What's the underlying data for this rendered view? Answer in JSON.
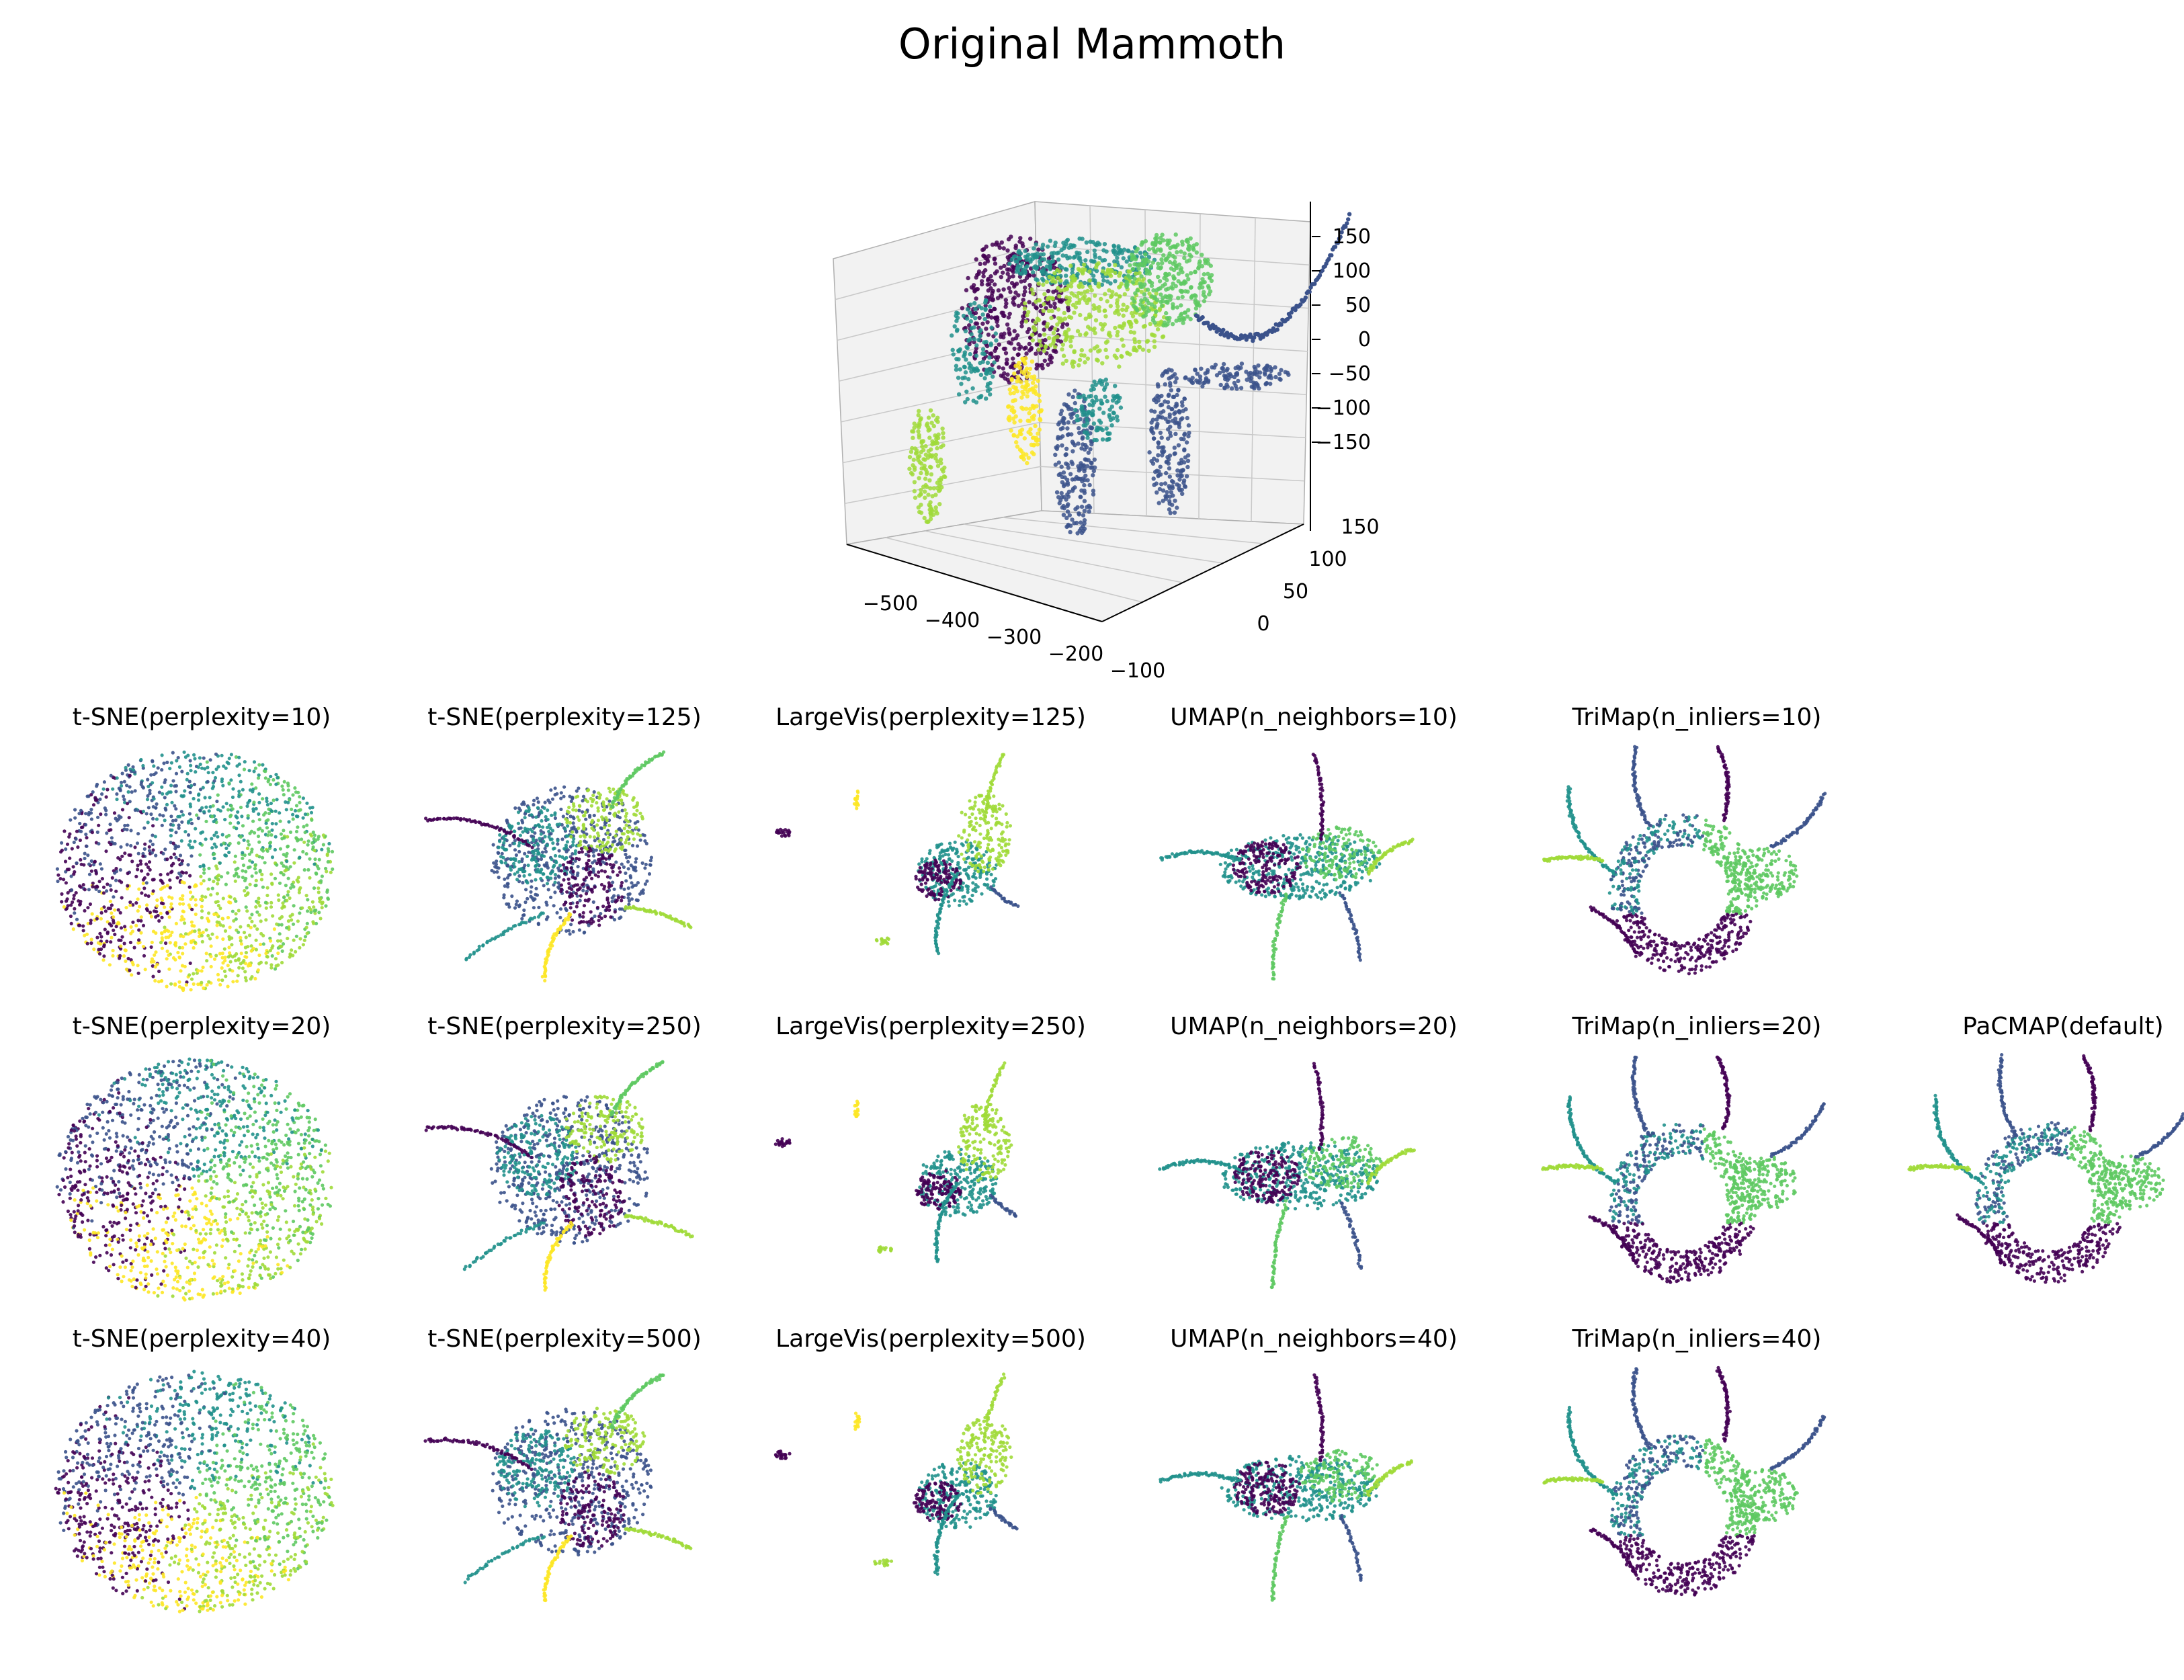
{
  "title": "Original Mammoth",
  "colors": {
    "viridis": [
      "#440154",
      "#3b528b",
      "#21918c",
      "#5ec962",
      "#a0da39",
      "#fde725"
    ],
    "pane": "#f2f2f2",
    "grid": "#c8c8c8"
  },
  "original_3d": {
    "type": "scatter3d",
    "z_ticks": [
      "150",
      "100",
      "50",
      "0",
      "−50",
      "−100",
      "−150"
    ],
    "x_ticks": [
      "−500",
      "−400",
      "−300",
      "−200",
      "−100"
    ],
    "y_ticks": [
      "0",
      "50",
      "100",
      "150"
    ],
    "xlim": [
      -560,
      -60
    ],
    "ylim": [
      -20,
      190
    ],
    "zlim": [
      -180,
      180
    ]
  },
  "panels": [
    {
      "title": "t-SNE(perplexity=10)",
      "method": "tsne",
      "param": 10
    },
    {
      "title": "t-SNE(perplexity=125)",
      "method": "tsne",
      "param": 125
    },
    {
      "title": "LargeVis(perplexity=125)",
      "method": "largevis",
      "param": 125
    },
    {
      "title": "UMAP(n_neighbors=10)",
      "method": "umap",
      "param": 10
    },
    {
      "title": "TriMap(n_inliers=10)",
      "method": "trimap",
      "param": 10
    },
    {
      "title": "t-SNE(perplexity=20)",
      "method": "tsne",
      "param": 20
    },
    {
      "title": "t-SNE(perplexity=250)",
      "method": "tsne",
      "param": 250
    },
    {
      "title": "LargeVis(perplexity=250)",
      "method": "largevis",
      "param": 250
    },
    {
      "title": "UMAP(n_neighbors=20)",
      "method": "umap",
      "param": 20
    },
    {
      "title": "TriMap(n_inliers=20)",
      "method": "trimap",
      "param": 20
    },
    {
      "title": "PaCMAP(default)",
      "method": "pacmap",
      "param": 0
    },
    {
      "title": "t-SNE(perplexity=40)",
      "method": "tsne",
      "param": 40
    },
    {
      "title": "t-SNE(perplexity=500)",
      "method": "tsne",
      "param": 500
    },
    {
      "title": "LargeVis(perplexity=500)",
      "method": "largevis",
      "param": 500
    },
    {
      "title": "UMAP(n_neighbors=40)",
      "method": "umap",
      "param": 40
    },
    {
      "title": "TriMap(n_inliers=40)",
      "method": "trimap",
      "param": 40
    }
  ],
  "chart_data": {
    "type": "scatter",
    "title": "Original Mammoth",
    "x_ticks_3d": [
      "−500",
      "−400",
      "−300",
      "−200",
      "−100"
    ],
    "y_ticks_3d": [
      "0",
      "50",
      "100",
      "150"
    ],
    "z_ticks_3d": [
      "150",
      "100",
      "50",
      "0",
      "−50",
      "−100",
      "−150"
    ],
    "colormap": "viridis",
    "panel_titles": [
      "t-SNE(perplexity=10)",
      "t-SNE(perplexity=125)",
      "LargeVis(perplexity=125)",
      "UMAP(n_neighbors=10)",
      "TriMap(n_inliers=10)",
      "t-SNE(perplexity=20)",
      "t-SNE(perplexity=250)",
      "LargeVis(perplexity=250)",
      "UMAP(n_neighbors=20)",
      "TriMap(n_inliers=20)",
      "PaCMAP(default)",
      "t-SNE(perplexity=40)",
      "t-SNE(perplexity=500)",
      "LargeVis(perplexity=500)",
      "UMAP(n_neighbors=40)",
      "TriMap(n_inliers=40)"
    ]
  }
}
